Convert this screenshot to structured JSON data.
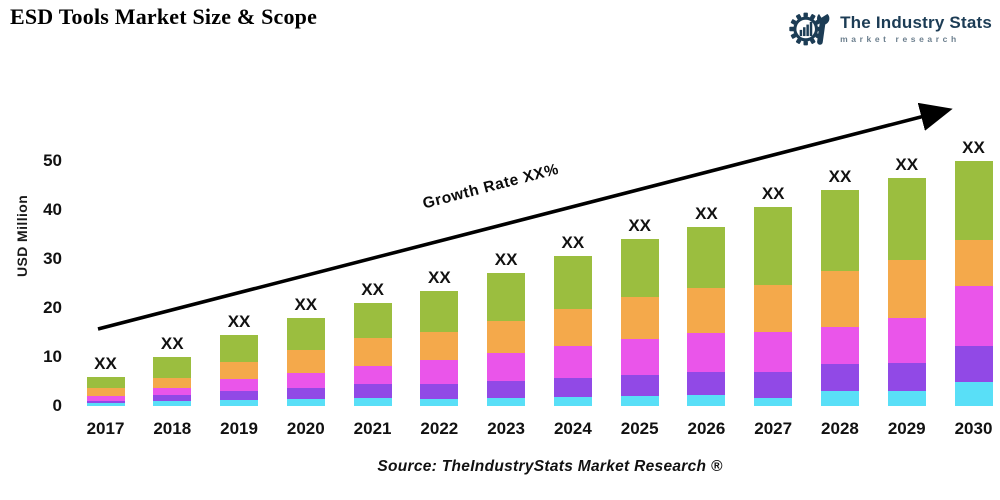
{
  "page": {
    "title": "ESD Tools Market Size & Scope"
  },
  "logo": {
    "name": "The Industry Stats",
    "tagline": "market research",
    "icon": "gear-wrench-barchart-icon",
    "color": "#1C3C55",
    "tagline_color": "#6C7F8E"
  },
  "chart_data": {
    "type": "bar",
    "stacked": true,
    "title": "ESD Tools Market Size & Scope",
    "xlabel": "",
    "ylabel": "USD Million",
    "ylim": [
      0,
      55
    ],
    "yticks": [
      0,
      10,
      20,
      30,
      40,
      50
    ],
    "grid": false,
    "legend": "none",
    "categories": [
      "2017",
      "2018",
      "2019",
      "2020",
      "2021",
      "2022",
      "2023",
      "2024",
      "2025",
      "2026",
      "2027",
      "2028",
      "2029",
      "2030"
    ],
    "bar_value_label": "XX",
    "annotation": "Growth Rate XX%",
    "totals": [
      6.0,
      10.0,
      14.5,
      18.0,
      21.0,
      23.5,
      27.0,
      30.5,
      34.0,
      36.5,
      40.5,
      44.0,
      46.5,
      50.0
    ],
    "series": [
      {
        "name": "segment-1-cyan",
        "color": "#59DFF7",
        "values": [
          0.6,
          1.0,
          1.2,
          1.4,
          1.7,
          1.5,
          1.7,
          1.9,
          2.1,
          2.3,
          1.6,
          3.0,
          3.0,
          4.8
        ]
      },
      {
        "name": "segment-2-purple",
        "color": "#9149E6",
        "values": [
          0.5,
          1.2,
          1.8,
          2.2,
          2.7,
          2.9,
          3.4,
          3.8,
          4.3,
          4.7,
          5.4,
          5.5,
          5.8,
          7.5
        ]
      },
      {
        "name": "segment-3-magenta",
        "color": "#EA55EA",
        "values": [
          1.0,
          1.4,
          2.5,
          3.2,
          3.8,
          5.0,
          5.8,
          6.5,
          7.2,
          7.8,
          8.0,
          7.6,
          9.2,
          12.2
        ]
      },
      {
        "name": "segment-4-orange",
        "color": "#F4A94B",
        "values": [
          1.5,
          2.2,
          3.5,
          4.6,
          5.6,
          5.6,
          6.5,
          7.6,
          8.6,
          9.2,
          9.6,
          11.4,
          11.8,
          9.4
        ]
      },
      {
        "name": "segment-5-green",
        "color": "#9BBE3F",
        "values": [
          2.4,
          4.2,
          5.5,
          6.6,
          7.2,
          8.5,
          9.6,
          10.7,
          11.8,
          12.5,
          15.9,
          16.5,
          16.7,
          16.1
        ]
      }
    ],
    "arrow_color": "#000000"
  },
  "footer": {
    "source": "Source: TheIndustryStats Market Research ®"
  }
}
